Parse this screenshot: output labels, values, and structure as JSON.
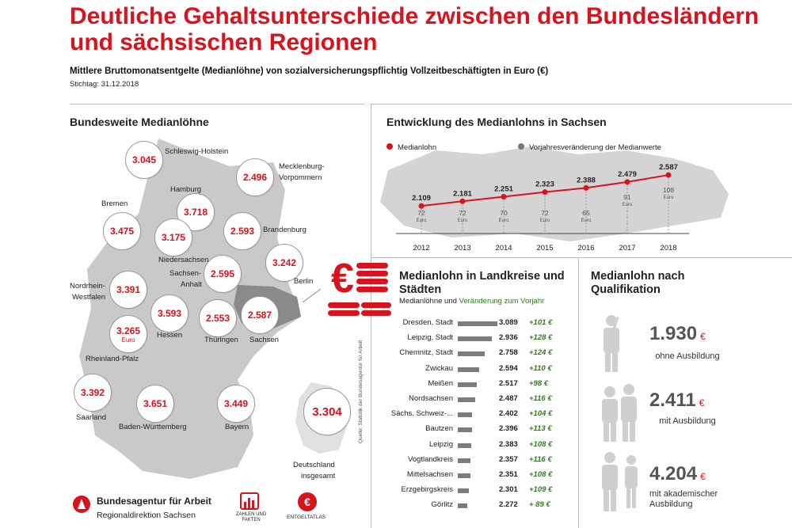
{
  "header": {
    "title": "Deutliche Gehaltsunterschiede zwischen den Bundesländern und sächsischen Regionen",
    "subtitle": "Mittlere Bruttomonatsentgelte (Medianlöhne) von sozialversicherungspflichtig Vollzeitbeschäftigten in Euro (€)",
    "stichtag": "Stichtag: 31.12.2018"
  },
  "map": {
    "heading": "Bundesweite Medianlöhne",
    "states": [
      {
        "name": "Schleswig-Holstein",
        "value": "3.045"
      },
      {
        "name": "Mecklenburg-Vorpommern",
        "value": "2.496"
      },
      {
        "name": "Hamburg",
        "value": "3.718"
      },
      {
        "name": "Bremen",
        "value": "3.475"
      },
      {
        "name": "Niedersachsen",
        "value": "3.175"
      },
      {
        "name": "Brandenburg",
        "value": "2.593"
      },
      {
        "name": "Berlin",
        "value": "3.242"
      },
      {
        "name": "Sachsen-Anhalt",
        "value": "2.595"
      },
      {
        "name": "Nordrhein-Westfalen",
        "value": "3.391"
      },
      {
        "name": "Hessen",
        "value": "3.593"
      },
      {
        "name": "Thüringen",
        "value": "2.553"
      },
      {
        "name": "Sachsen",
        "value": "2.587"
      },
      {
        "name": "Rheinland-Pfalz",
        "value": "3.265"
      },
      {
        "name": "Saarland",
        "value": "3.392"
      },
      {
        "name": "Baden-Württemberg",
        "value": "3.651"
      },
      {
        "name": "Bayern",
        "value": "3.449"
      }
    ],
    "unit_label": "Euro",
    "labels": {
      "sh": "Schleswig-Holstein",
      "mv1": "Mecklenburg-",
      "mv2": "Vorpommern",
      "hh": "Hamburg",
      "hb": "Bremen",
      "ni": "Niedersachsen",
      "bb": "Brandenburg",
      "be": "Berlin",
      "st1": "Sachsen-",
      "st2": "Anhalt",
      "nw1": "Nordrhein-",
      "nw2": "Westfalen",
      "he": "Hessen",
      "th": "Thüringen",
      "sn": "Sachsen",
      "rp": "Rheinland-Pfalz",
      "sl": "Saarland",
      "bw": "Baden-Württemberg",
      "by": "Bayern"
    },
    "germany": {
      "value": "3.304",
      "label1": "Deutschland",
      "label2": "insgesamt"
    }
  },
  "colors": {
    "accent": "#d7141e",
    "bar": "#7d7d7d",
    "green": "#2f7d1e",
    "silhouette": "#c9c9c9"
  },
  "chart_data": [
    {
      "type": "line",
      "title": "Entwicklung des Medianlohns in Sachsen",
      "x": [
        "2012",
        "2013",
        "2014",
        "2015",
        "2016",
        "2017",
        "2018"
      ],
      "series": [
        {
          "name": "Medianlohn",
          "values": [
            2109,
            2181,
            2251,
            2323,
            2388,
            2479,
            2587
          ],
          "labels": [
            "2.109",
            "2.181",
            "2.251",
            "2.323",
            "2.388",
            "2.479",
            "2.587"
          ]
        },
        {
          "name": "Vorjahresveränderung der Medianwerte",
          "values": [
            72,
            72,
            70,
            72,
            65,
            91,
            108
          ],
          "unit": "Euro"
        }
      ],
      "legend": [
        "Medianlohn",
        "Vorjahresveränderung der Medianwerte"
      ],
      "ylim": [
        1900,
        2700
      ]
    },
    {
      "type": "bar",
      "title": "Medianlohn in Landkreise und Städten",
      "subtitle_a": "Medianlöhne und",
      "subtitle_b": "Veränderung zum Vorjahr",
      "source": "Quelle: Statistik der Bundesagentur für Arbeit",
      "categories": [
        "Dresden, Stadt",
        "Leipzig, Stadt",
        "Chemnitz, Stadt",
        "Zwickau",
        "Meißen",
        "Nordsachsen",
        "Sächs. Schweiz-...",
        "Bautzen",
        "Leipzig",
        "Vogtlandkreis",
        "Mittelsachsen",
        "Erzgebirgskreis",
        "Görlitz"
      ],
      "values": [
        3089,
        2936,
        2758,
        2594,
        2517,
        2487,
        2402,
        2396,
        2383,
        2357,
        2351,
        2301,
        2272
      ],
      "value_labels": [
        "3.089",
        "2.936",
        "2.758",
        "2.594",
        "2.517",
        "2.487",
        "2.402",
        "2.396",
        "2.383",
        "2.357",
        "2.351",
        "2.301",
        "2.272"
      ],
      "changes": [
        "+101 €",
        "+128 €",
        "+124 €",
        "+110 €",
        "+98 €",
        "+116 €",
        "+104 €",
        "+113 €",
        "+108 €",
        "+116 €",
        "+108 €",
        "+109 €",
        "+ 89 €"
      ]
    }
  ],
  "qualification": {
    "heading1": "Medianlohn nach",
    "heading2": "Qualifikation",
    "euro": "€",
    "items": [
      {
        "value": "1.930",
        "label": "ohne Ausbildung"
      },
      {
        "value": "2.411",
        "label": "mit Ausbildung"
      },
      {
        "value": "4.204",
        "label1": "mit akademischer",
        "label2": "Ausbildung"
      }
    ]
  },
  "footer": {
    "org_name": "Bundesagentur für Arbeit",
    "org_sub": "Regionaldirektion Sachsen",
    "zahlen1": "ZAHLEN UND",
    "zahlen2": "FAKTEN",
    "atlas": "ENTGELTATLAS"
  }
}
